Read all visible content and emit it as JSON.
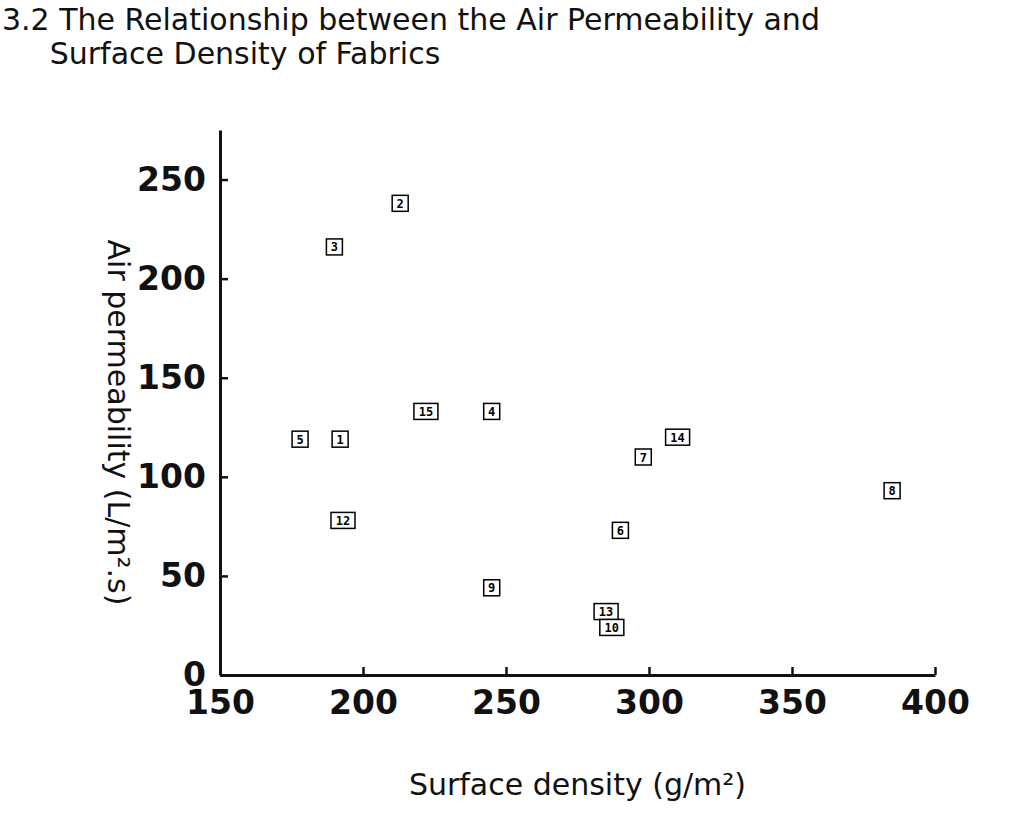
{
  "chart_data": {
    "type": "scatter",
    "title": "3.2 The Relationship between the Air Permeability and Surface Density of Fabrics",
    "x_label": "Surface density (g/m²)",
    "y_label": "Air permeability (L/m².s)",
    "x": [
      178,
      192,
      193,
      190,
      213,
      222,
      245,
      245,
      285,
      287,
      290,
      298,
      310,
      385
    ],
    "values": [
      119,
      119,
      78,
      216,
      238,
      133,
      133,
      44,
      32,
      24,
      73,
      110,
      120,
      93
    ],
    "labels": [
      "5",
      "1",
      "12",
      "3",
      "2",
      "15",
      "4",
      "9",
      "13",
      "10",
      "6",
      "7",
      "14",
      "8"
    ],
    "color": "#000000",
    "marker": "square",
    "xlim": [
      150,
      400
    ],
    "ylim": [
      0,
      275
    ],
    "xticks": [
      150,
      200,
      250,
      300,
      350,
      400
    ],
    "yticks": [
      0,
      50,
      100,
      150,
      200,
      250
    ],
    "grid": false
  }
}
